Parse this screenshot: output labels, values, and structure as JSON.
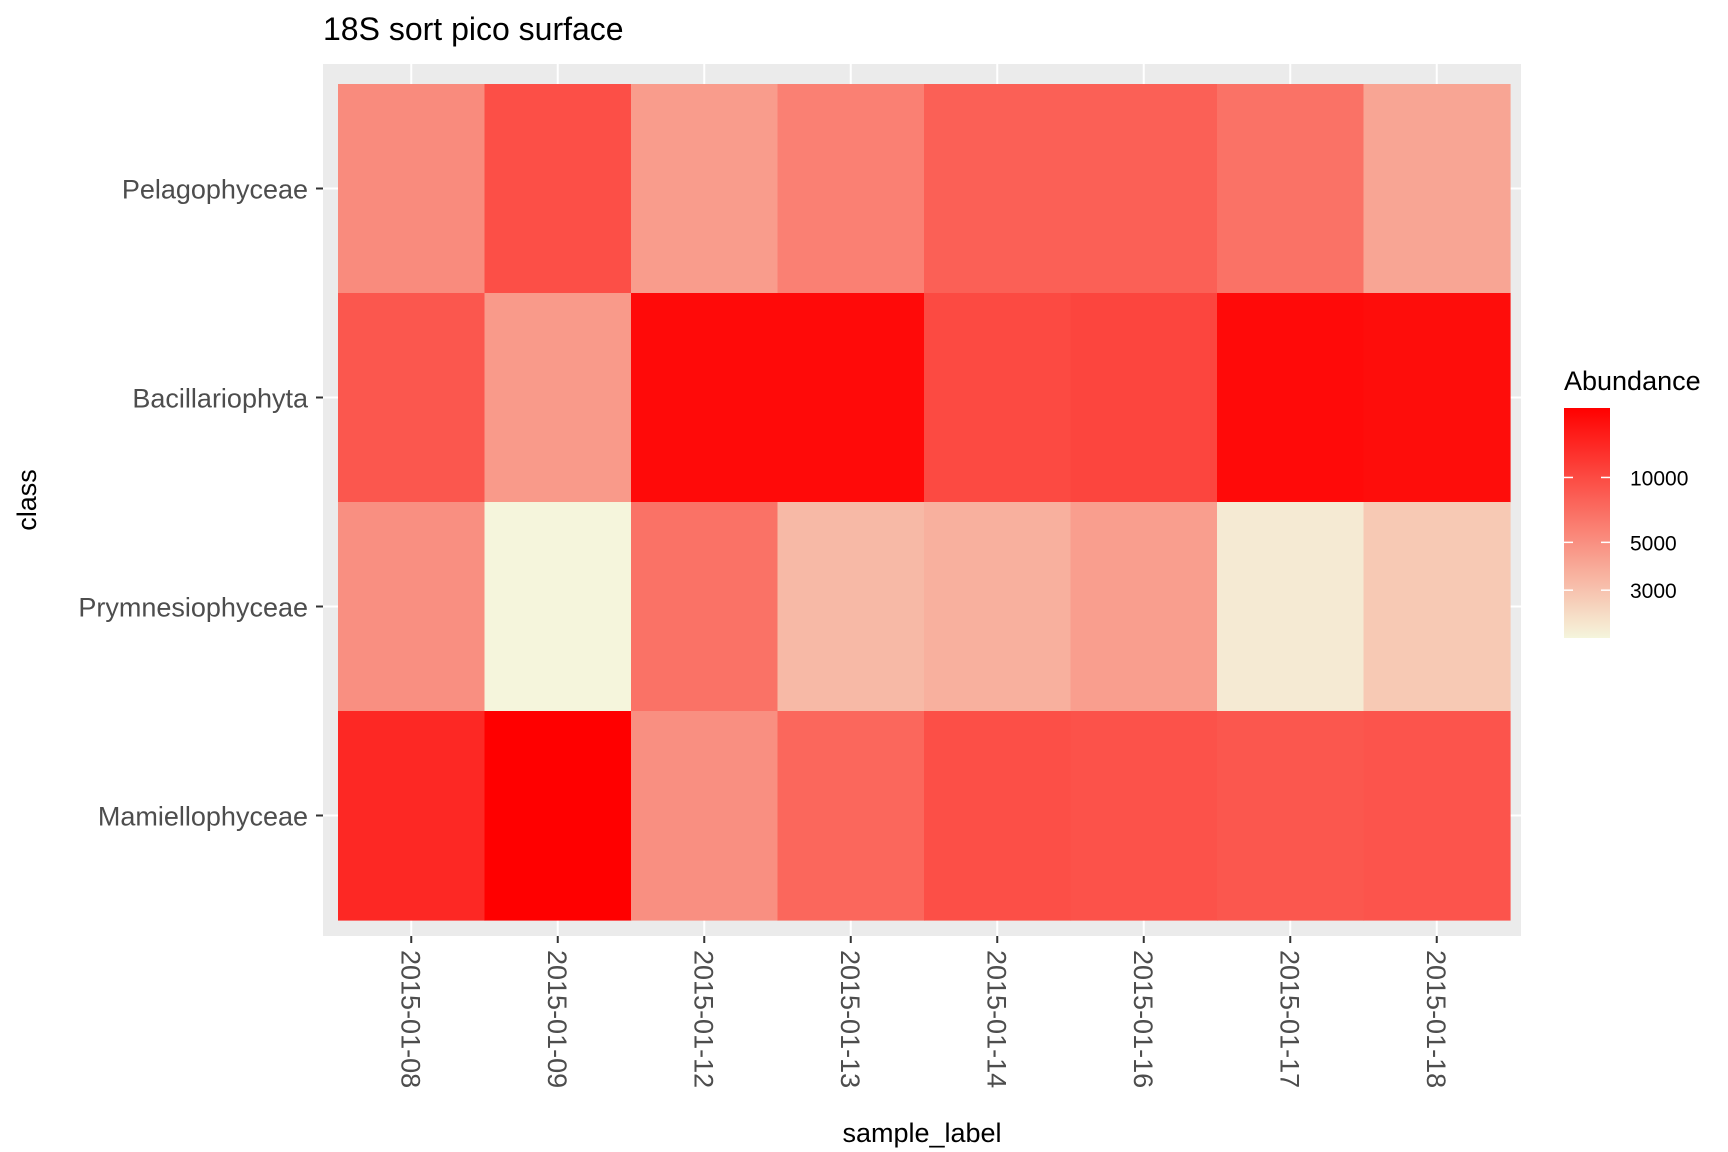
{
  "chart_data": {
    "type": "heatmap",
    "title": "18S sort pico surface",
    "xlabel": "sample_label",
    "ylabel": "class",
    "x_categories": [
      "2015-01-08",
      "2015-01-09",
      "2015-01-12",
      "2015-01-13",
      "2015-01-14",
      "2015-01-16",
      "2015-01-17",
      "2015-01-18"
    ],
    "y_categories": [
      "Pelagophyceae",
      "Bacillariophyta",
      "Prymnesiophyceae",
      "Mamiellophyceae"
    ],
    "values": [
      [
        5200,
        9500,
        4400,
        5800,
        8000,
        8000,
        6700,
        4000
      ],
      [
        8800,
        4500,
        19000,
        19000,
        10000,
        10500,
        19000,
        18500
      ],
      [
        5000,
        1800,
        6700,
        3300,
        3600,
        4300,
        2000,
        2800
      ],
      [
        14000,
        21000,
        5000,
        7500,
        9500,
        9200,
        8800,
        9000
      ]
    ],
    "color_scale": {
      "transform": "log10",
      "low": "#f5f5dc",
      "high": "#ff0000",
      "domain": [
        1800,
        21000
      ]
    },
    "legend": {
      "title": "Abundance",
      "ticks": [
        3000,
        5000,
        10000
      ],
      "ticklabels": [
        "3000",
        "5000",
        "10000"
      ],
      "position": "right"
    },
    "grid": true
  }
}
